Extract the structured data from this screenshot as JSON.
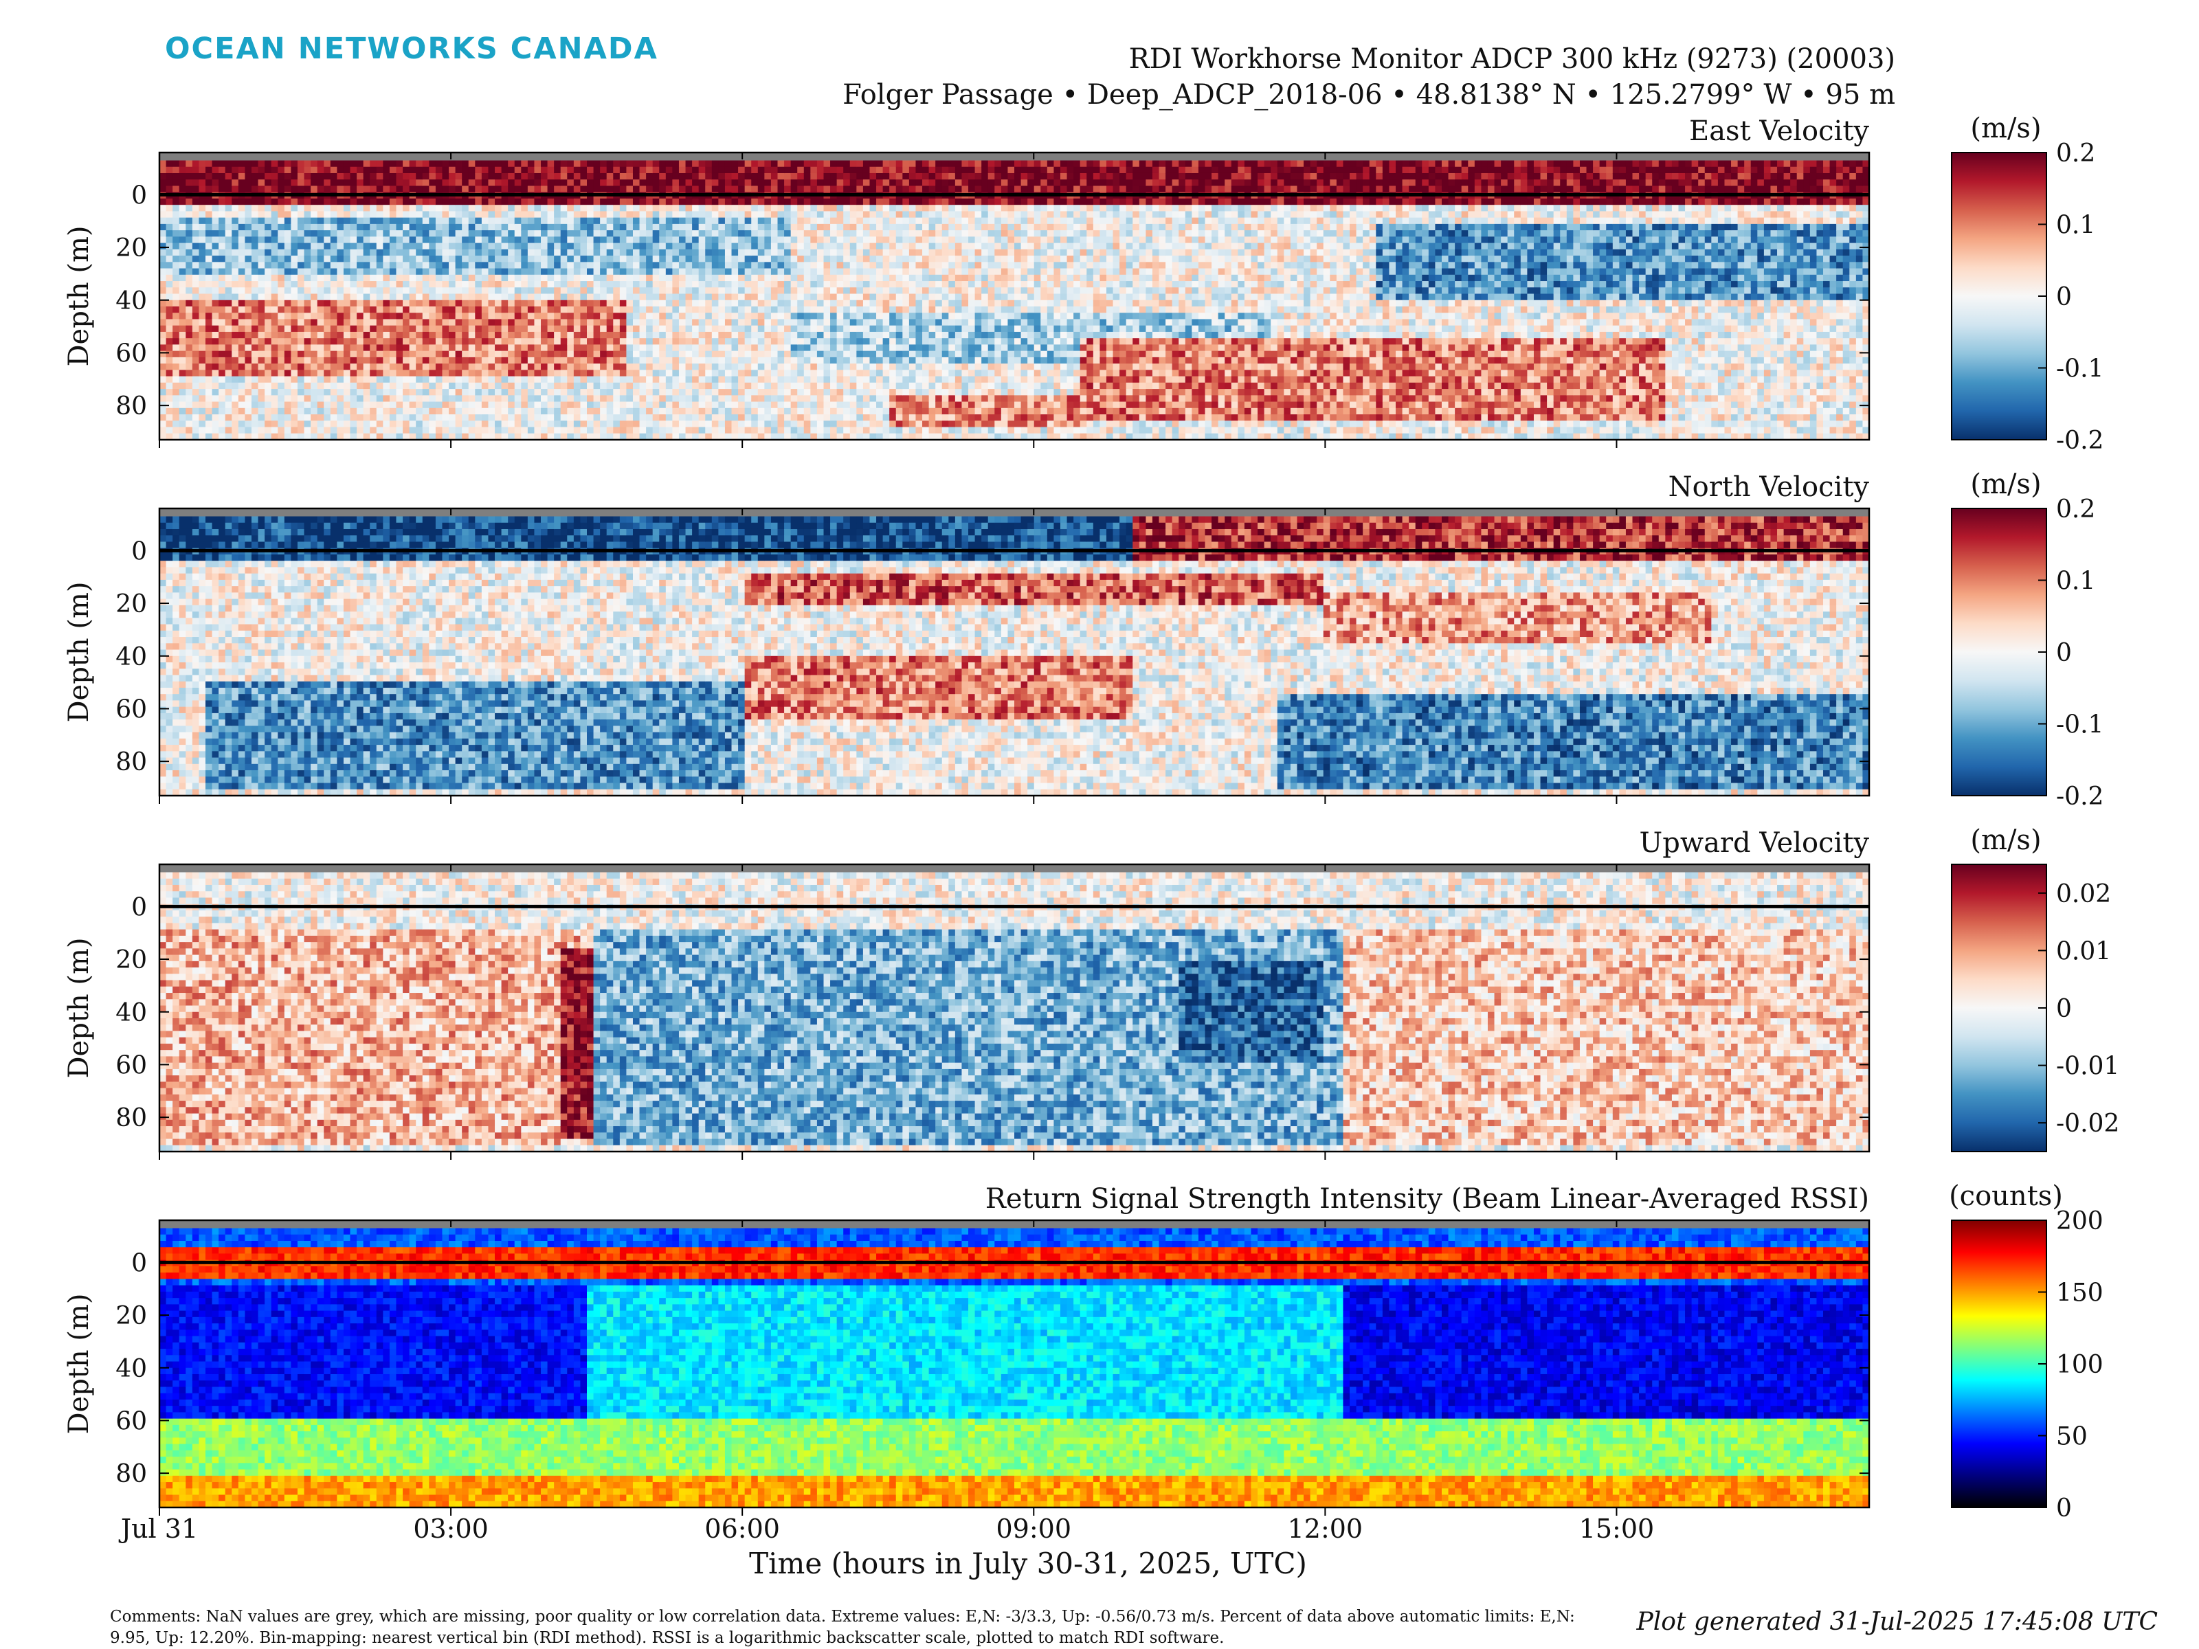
{
  "header": {
    "logo": "OCEAN NETWORKS CANADA",
    "title_line1": "RDI Workhorse Monitor ADCP 300 kHz (9273) (20003)",
    "title_line2": "Folger Passage • Deep_ADCP_2018-06 • 48.8138° N • 125.2799° W • 95 m"
  },
  "footer": {
    "comments": "Comments: NaN values are grey, which are missing, poor quality or low correlation data. Extreme values: E,N: -3/3.3, Up: -0.56/0.73 m/s. Percent of data above automatic limits: E,N: 9.95, Up: 12.20%. Bin-mapping: nearest vertical bin (RDI method). RSSI is a logarithmic backscatter scale, plotted to match RDI software.",
    "generated": "Plot generated 31-Jul-2025 17:45:08 UTC"
  },
  "colors": {
    "nan_grey": "#7f7f7f",
    "logo": "#1aa3c7",
    "diverging": [
      "#08306b",
      "#2166ac",
      "#4393c3",
      "#92c5de",
      "#d1e5f0",
      "#f7f7f7",
      "#fddbc7",
      "#f4a582",
      "#d6604d",
      "#b2182b",
      "#67001f"
    ],
    "jet": [
      "#000000",
      "#00007f",
      "#0000ff",
      "#007fff",
      "#00ffff",
      "#7fff7f",
      "#ffff00",
      "#ff7f00",
      "#ff0000",
      "#7f0000"
    ]
  },
  "chart_data": [
    {
      "type": "heatmap",
      "title": "East Velocity",
      "ylabel": "Depth (m)",
      "ylim": [
        93,
        -16
      ],
      "yticks": [
        "0",
        "20",
        "40",
        "60",
        "80"
      ],
      "colorbar": {
        "unit": "(m/s)",
        "ticks": [
          "0.2",
          "0.1",
          "0",
          "-0.1",
          "-0.2"
        ],
        "range": [
          -0.2,
          0.2
        ],
        "colormap": "diverging"
      },
      "features": [
        {
          "t0": 0,
          "t1": 17.6,
          "d0": -13,
          "d1": 5,
          "v": 0.19
        },
        {
          "t0": 0,
          "t1": 6.5,
          "d0": 8,
          "d1": 30,
          "v": -0.08
        },
        {
          "t0": 12.5,
          "t1": 17.6,
          "d0": 10,
          "d1": 40,
          "v": -0.12
        },
        {
          "t0": 0,
          "t1": 4.8,
          "d0": 40,
          "d1": 70,
          "v": 0.1
        },
        {
          "t0": 6.5,
          "t1": 11.5,
          "d0": 45,
          "d1": 65,
          "v": -0.06
        },
        {
          "t0": 9.5,
          "t1": 15.5,
          "d0": 55,
          "d1": 85,
          "v": 0.1
        },
        {
          "t0": 7.5,
          "t1": 9.5,
          "d0": 75,
          "d1": 88,
          "v": 0.09
        }
      ]
    },
    {
      "type": "heatmap",
      "title": "North Velocity",
      "ylabel": "Depth (m)",
      "ylim": [
        93,
        -16
      ],
      "yticks": [
        "0",
        "20",
        "40",
        "60",
        "80"
      ],
      "colorbar": {
        "unit": "(m/s)",
        "ticks": [
          "0.2",
          "0.1",
          "0",
          "-0.1",
          "-0.2"
        ],
        "range": [
          -0.2,
          0.2
        ],
        "colormap": "diverging"
      },
      "features": [
        {
          "t0": 0,
          "t1": 10,
          "d0": -13,
          "d1": 5,
          "v": -0.18
        },
        {
          "t0": 10,
          "t1": 17.6,
          "d0": -13,
          "d1": 5,
          "v": 0.15
        },
        {
          "t0": 6,
          "t1": 12,
          "d0": 8,
          "d1": 20,
          "v": 0.12
        },
        {
          "t0": 0.5,
          "t1": 6,
          "d0": 50,
          "d1": 90,
          "v": -0.12
        },
        {
          "t0": 6,
          "t1": 10,
          "d0": 40,
          "d1": 65,
          "v": 0.1
        },
        {
          "t0": 11.5,
          "t1": 17.6,
          "d0": 55,
          "d1": 90,
          "v": -0.13
        },
        {
          "t0": 12,
          "t1": 16,
          "d0": 15,
          "d1": 35,
          "v": 0.08
        }
      ]
    },
    {
      "type": "heatmap",
      "title": "Upward Velocity",
      "ylabel": "Depth (m)",
      "ylim": [
        93,
        -16
      ],
      "yticks": [
        "0",
        "20",
        "40",
        "60",
        "80"
      ],
      "colorbar": {
        "unit": "(m/s)",
        "ticks": [
          "0.02",
          "0.01",
          "0",
          "-0.01",
          "-0.02"
        ],
        "range": [
          -0.025,
          0.025
        ],
        "colormap": "diverging"
      },
      "features": [
        {
          "t0": 0,
          "t1": 17.6,
          "d0": -13,
          "d1": 5,
          "v": 0.0
        },
        {
          "t0": 0,
          "t1": 4.5,
          "d0": 8,
          "d1": 90,
          "v": 0.008
        },
        {
          "t0": 4.1,
          "t1": 4.5,
          "d0": 15,
          "d1": 88,
          "v": 0.022
        },
        {
          "t0": 4.5,
          "t1": 12.2,
          "d0": 8,
          "d1": 90,
          "v": -0.012
        },
        {
          "t0": 10.5,
          "t1": 12,
          "d0": 20,
          "d1": 60,
          "v": -0.02
        },
        {
          "t0": 12.2,
          "t1": 17.6,
          "d0": 8,
          "d1": 90,
          "v": 0.006
        }
      ]
    },
    {
      "type": "heatmap",
      "title": "Return Signal Strength Intensity (Beam Linear-Averaged RSSI)",
      "ylabel": "Depth (m)",
      "ylim": [
        93,
        -16
      ],
      "yticks": [
        "0",
        "20",
        "40",
        "60",
        "80"
      ],
      "colorbar": {
        "unit": "(counts)",
        "ticks": [
          "200",
          "150",
          "100",
          "50",
          "0"
        ],
        "range": [
          0,
          200
        ],
        "colormap": "jet"
      },
      "features": [
        {
          "t0": 0,
          "t1": 17.6,
          "d0": -5,
          "d1": 6,
          "v": 170
        },
        {
          "t0": 0,
          "t1": 4.4,
          "d0": 8,
          "d1": 60,
          "v": 45
        },
        {
          "t0": 4.4,
          "t1": 12.2,
          "d0": 8,
          "d1": 60,
          "v": 85
        },
        {
          "t0": 12.2,
          "t1": 17.6,
          "d0": 8,
          "d1": 60,
          "v": 42
        },
        {
          "t0": 0,
          "t1": 17.6,
          "d0": 60,
          "d1": 80,
          "v": 115
        },
        {
          "t0": 0,
          "t1": 17.6,
          "d0": 80,
          "d1": 93,
          "v": 150
        }
      ]
    }
  ],
  "xaxis": {
    "label": "Time (hours in July 30-31, 2025, UTC)",
    "range_hours": [
      0,
      17.6
    ],
    "ticks": [
      {
        "h": 0,
        "label": "Jul 31"
      },
      {
        "h": 3,
        "label": "03:00"
      },
      {
        "h": 6,
        "label": "06:00"
      },
      {
        "h": 9,
        "label": "09:00"
      },
      {
        "h": 12,
        "label": "12:00"
      },
      {
        "h": 15,
        "label": "15:00"
      }
    ]
  }
}
